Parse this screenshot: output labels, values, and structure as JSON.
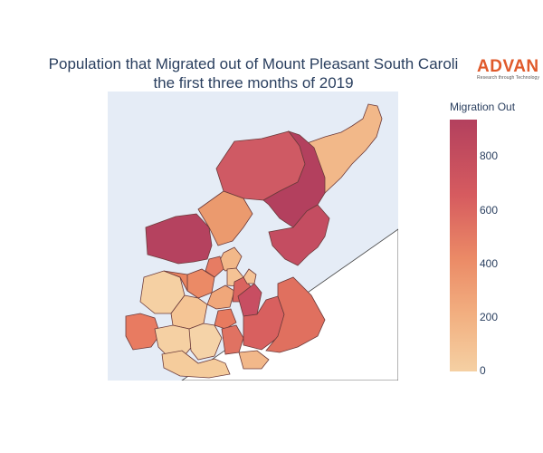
{
  "title": {
    "line1": "Population that Migrated out of Mount Pleasant South Caroli",
    "line2": "the first three months of 2019"
  },
  "logo": {
    "name": "ADVAN",
    "tagline": "Research through Technology"
  },
  "colorbar": {
    "title": "Migration Out",
    "ticks": [
      "800",
      "600",
      "400",
      "200",
      "0"
    ],
    "tick_values": [
      800,
      600,
      400,
      200,
      0
    ],
    "range": [
      0,
      950
    ],
    "colors": [
      "#f5d0a3",
      "#f2b081",
      "#eb8a66",
      "#d65b5f",
      "#b3405e"
    ]
  },
  "map": {
    "water_color": "#e5ecf6",
    "land_color": "#ffffff",
    "border_color": "#6b3a3a",
    "region_values": {
      "upper-north-east": 180,
      "central-north": 660,
      "north-tall": 910,
      "north-west-large": 900,
      "east-mid": 680,
      "mid-west": 380,
      "south-east-large": 560,
      "south-west-big": 160,
      "south-centre": 240
    }
  }
}
